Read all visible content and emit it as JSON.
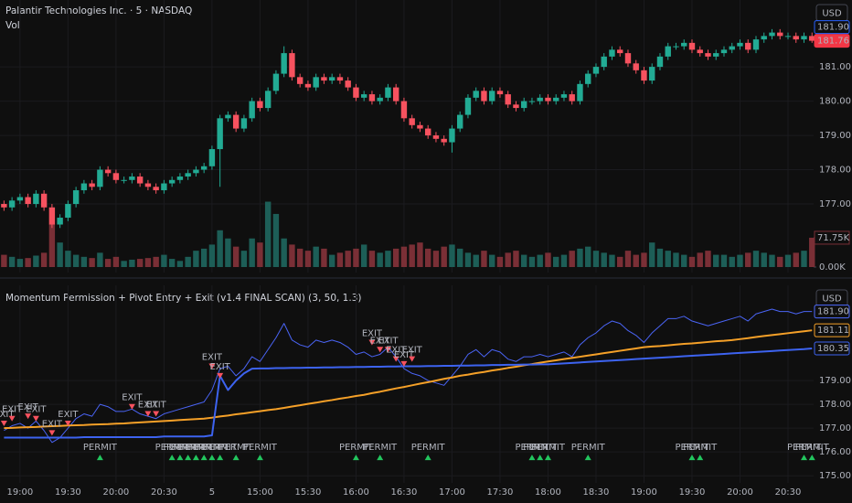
{
  "chart_data": [
    {
      "type": "candlestick",
      "title": "Palantir Technologies Inc. · 5 · NASDAQ",
      "subtitle": "Vol",
      "currency": "USD",
      "up_color": "#22ab94",
      "down_color": "#f7525f",
      "volume_up_color": "#1d5e57",
      "volume_down_color": "#7a2f36",
      "xlim": [
        -0.5,
        101.2
      ],
      "ylim": [
        175,
        182.95
      ],
      "grid": true,
      "yticks": [
        {
          "value": 181,
          "label": "181.00"
        },
        {
          "value": 180,
          "label": "180.00"
        },
        {
          "value": 179,
          "label": "179.00"
        },
        {
          "value": 178,
          "label": "178.00"
        },
        {
          "value": 177,
          "label": "177.00"
        }
      ],
      "price_labels": [
        {
          "value": 181.9,
          "label": "181.90",
          "color": "#2962ff",
          "filled": false
        },
        {
          "value": 181.76,
          "label": "181.76",
          "color": "#f23645",
          "filled": true
        }
      ],
      "vlim": [
        0,
        300
      ],
      "vticks": [
        {
          "value": 0,
          "label": "0.00K"
        },
        {
          "value": 71.75,
          "label": "71.75K"
        }
      ],
      "open": [
        177.0,
        176.9,
        177.1,
        177.2,
        177.0,
        177.3,
        176.9,
        176.4,
        176.6,
        177.0,
        177.4,
        177.6,
        177.5,
        178.0,
        177.9,
        177.7,
        177.7,
        177.8,
        177.6,
        177.5,
        177.4,
        177.6,
        177.7,
        177.8,
        177.9,
        178.0,
        178.1,
        178.6,
        179.5,
        179.6,
        179.2,
        179.5,
        180.0,
        179.8,
        180.3,
        180.8,
        181.4,
        180.7,
        180.5,
        180.4,
        180.7,
        180.6,
        180.7,
        180.6,
        180.4,
        180.1,
        180.2,
        180.0,
        180.1,
        180.4,
        180.0,
        179.5,
        179.3,
        179.2,
        179.0,
        178.9,
        178.8,
        179.2,
        179.6,
        180.1,
        180.3,
        180.0,
        180.3,
        180.2,
        179.9,
        179.8,
        180.0,
        180.0,
        180.1,
        180.0,
        180.1,
        180.2,
        180.0,
        180.5,
        180.8,
        181.0,
        181.3,
        181.5,
        181.4,
        181.1,
        180.9,
        180.6,
        181.0,
        181.3,
        181.6,
        181.6,
        181.7,
        181.5,
        181.4,
        181.3,
        181.4,
        181.5,
        181.6,
        181.7,
        181.5,
        181.8,
        181.9,
        182.0,
        181.9,
        181.9,
        181.8,
        181.9
      ],
      "high": [
        177.1,
        177.2,
        177.3,
        177.3,
        177.4,
        177.4,
        177.0,
        176.7,
        177.1,
        177.5,
        177.7,
        177.7,
        178.1,
        178.1,
        178.0,
        177.8,
        177.9,
        177.9,
        177.7,
        177.6,
        177.7,
        177.8,
        177.9,
        178.0,
        178.1,
        178.2,
        178.7,
        179.6,
        179.7,
        179.7,
        179.6,
        180.1,
        180.1,
        180.4,
        180.9,
        181.6,
        181.5,
        180.8,
        180.6,
        180.8,
        180.8,
        180.8,
        180.8,
        180.7,
        180.5,
        180.3,
        180.3,
        180.2,
        180.5,
        180.5,
        180.1,
        179.6,
        179.4,
        179.3,
        179.1,
        179.0,
        179.3,
        179.7,
        180.2,
        180.4,
        180.4,
        180.4,
        180.4,
        180.3,
        180.0,
        180.1,
        180.1,
        180.2,
        180.2,
        180.2,
        180.3,
        180.3,
        180.6,
        180.9,
        181.1,
        181.4,
        181.6,
        181.6,
        181.5,
        181.2,
        181.0,
        181.1,
        181.4,
        181.7,
        181.7,
        181.8,
        181.8,
        181.6,
        181.5,
        181.5,
        181.6,
        181.7,
        181.8,
        181.8,
        181.9,
        182.0,
        182.1,
        182.1,
        182.0,
        182.0,
        182.0,
        182.0
      ],
      "low": [
        176.8,
        176.8,
        177.0,
        176.9,
        176.9,
        176.8,
        176.3,
        176.3,
        176.5,
        176.9,
        177.3,
        177.4,
        177.4,
        177.8,
        177.6,
        177.6,
        177.6,
        177.5,
        177.4,
        177.3,
        177.3,
        177.5,
        177.6,
        177.7,
        177.8,
        177.9,
        178.0,
        177.5,
        179.4,
        179.1,
        179.1,
        179.4,
        179.7,
        179.7,
        180.2,
        180.7,
        180.6,
        180.4,
        180.3,
        180.3,
        180.5,
        180.5,
        180.5,
        180.3,
        180.0,
        180.0,
        179.9,
        179.9,
        180.0,
        179.9,
        179.4,
        179.2,
        179.1,
        178.9,
        178.8,
        178.7,
        178.5,
        179.1,
        179.5,
        180.0,
        179.9,
        179.9,
        180.1,
        179.8,
        179.7,
        179.7,
        179.9,
        179.9,
        179.9,
        179.9,
        180.0,
        179.9,
        179.9,
        180.4,
        180.7,
        180.9,
        181.2,
        181.3,
        181.0,
        180.8,
        180.5,
        180.5,
        180.9,
        181.2,
        181.5,
        181.5,
        181.4,
        181.3,
        181.2,
        181.2,
        181.3,
        181.4,
        181.5,
        181.4,
        181.4,
        181.7,
        181.8,
        181.8,
        181.8,
        181.7,
        181.7,
        181.7
      ],
      "close": [
        176.9,
        177.1,
        177.2,
        177.0,
        177.3,
        176.9,
        176.4,
        176.6,
        177.0,
        177.4,
        177.6,
        177.5,
        178.0,
        177.9,
        177.7,
        177.7,
        177.8,
        177.6,
        177.5,
        177.4,
        177.6,
        177.7,
        177.8,
        177.9,
        178.0,
        178.1,
        178.6,
        179.5,
        179.6,
        179.2,
        179.5,
        180.0,
        179.8,
        180.3,
        180.8,
        181.4,
        180.7,
        180.5,
        180.4,
        180.7,
        180.6,
        180.7,
        180.6,
        180.4,
        180.1,
        180.2,
        180.0,
        180.1,
        180.4,
        180.0,
        179.5,
        179.3,
        179.2,
        179.0,
        178.9,
        178.8,
        179.2,
        179.6,
        180.1,
        180.3,
        180.0,
        180.3,
        180.2,
        179.9,
        179.8,
        180.0,
        180.0,
        180.1,
        180.0,
        180.1,
        180.2,
        180.0,
        180.5,
        180.8,
        181.0,
        181.3,
        181.5,
        181.4,
        181.1,
        180.9,
        180.6,
        181.0,
        181.3,
        181.6,
        181.6,
        181.7,
        181.5,
        181.4,
        181.3,
        181.4,
        181.5,
        181.6,
        181.7,
        181.5,
        181.8,
        181.9,
        182.0,
        181.9,
        181.9,
        181.8,
        181.9,
        181.76
      ],
      "volume": [
        30,
        25,
        20,
        22,
        28,
        35,
        105,
        60,
        40,
        30,
        25,
        22,
        35,
        20,
        25,
        15,
        18,
        20,
        22,
        25,
        30,
        20,
        15,
        25,
        40,
        45,
        55,
        90,
        70,
        50,
        40,
        70,
        60,
        160,
        130,
        70,
        55,
        45,
        40,
        50,
        45,
        30,
        35,
        40,
        45,
        55,
        40,
        35,
        40,
        45,
        50,
        55,
        60,
        45,
        40,
        50,
        55,
        45,
        35,
        30,
        40,
        30,
        25,
        35,
        40,
        30,
        25,
        30,
        35,
        25,
        30,
        40,
        45,
        50,
        40,
        35,
        30,
        25,
        40,
        30,
        35,
        60,
        45,
        40,
        35,
        30,
        25,
        35,
        40,
        30,
        30,
        25,
        30,
        35,
        40,
        35,
        30,
        25,
        30,
        35,
        40,
        71.75
      ]
    },
    {
      "type": "line",
      "title": "Momentum Permission + Pivot Entry + Exit (v1.4 FINAL SCAN) (3, 50, 1.3)",
      "currency": "USD",
      "xlim": [
        -0.5,
        101.2
      ],
      "ylim": [
        174.7,
        183
      ],
      "grid": true,
      "xticks": [
        {
          "value": 2,
          "label": "19:00"
        },
        {
          "value": 8,
          "label": "19:30"
        },
        {
          "value": 14,
          "label": "20:00"
        },
        {
          "value": 20,
          "label": "20:30"
        },
        {
          "value": 26,
          "label": "5"
        },
        {
          "value": 32,
          "label": "15:00"
        },
        {
          "value": 38,
          "label": "15:30"
        },
        {
          "value": 44,
          "label": "16:00"
        },
        {
          "value": 50,
          "label": "16:30"
        },
        {
          "value": 56,
          "label": "17:00"
        },
        {
          "value": 62,
          "label": "17:30"
        },
        {
          "value": 68,
          "label": "18:00"
        },
        {
          "value": 74,
          "label": "18:30"
        },
        {
          "value": 80,
          "label": "19:00"
        },
        {
          "value": 86,
          "label": "19:30"
        },
        {
          "value": 92,
          "label": "20:00"
        },
        {
          "value": 98,
          "label": "20:30"
        }
      ],
      "yticks": [
        {
          "value": 179,
          "label": "179.00"
        },
        {
          "value": 178,
          "label": "178.00"
        },
        {
          "value": 177,
          "label": "177.00"
        },
        {
          "value": 176,
          "label": "176.00"
        },
        {
          "value": 175,
          "label": "175.00"
        }
      ],
      "price_labels": [
        {
          "value": 181.9,
          "label": "181.90",
          "color": "#4f6bff",
          "filled": false
        },
        {
          "value": 181.11,
          "label": "181.11",
          "color": "#f5a028",
          "filled": false
        },
        {
          "value": 180.35,
          "label": "180.35",
          "color": "#3d63f0",
          "filled": false
        }
      ],
      "series": [
        {
          "color": "#4a64f5",
          "width": 1,
          "values": [
            176.9,
            177.1,
            177.2,
            177.0,
            177.3,
            176.9,
            176.4,
            176.6,
            177.0,
            177.4,
            177.6,
            177.5,
            178.0,
            177.9,
            177.7,
            177.7,
            177.8,
            177.6,
            177.5,
            177.4,
            177.6,
            177.7,
            177.8,
            177.9,
            178.0,
            178.1,
            178.6,
            179.5,
            179.6,
            179.2,
            179.5,
            180.0,
            179.8,
            180.3,
            180.8,
            181.4,
            180.7,
            180.5,
            180.4,
            180.7,
            180.6,
            180.7,
            180.6,
            180.4,
            180.1,
            180.2,
            180.0,
            180.1,
            180.4,
            180.0,
            179.5,
            179.3,
            179.2,
            179.0,
            178.9,
            178.8,
            179.2,
            179.6,
            180.1,
            180.3,
            180.0,
            180.3,
            180.2,
            179.9,
            179.8,
            180.0,
            180.0,
            180.1,
            180.0,
            180.1,
            180.2,
            180.0,
            180.5,
            180.8,
            181.0,
            181.3,
            181.5,
            181.4,
            181.1,
            180.9,
            180.6,
            181.0,
            181.3,
            181.6,
            181.6,
            181.7,
            181.5,
            181.4,
            181.3,
            181.4,
            181.5,
            181.6,
            181.7,
            181.5,
            181.8,
            181.9,
            182.0,
            181.9,
            181.9,
            181.8,
            181.9,
            181.9
          ]
        },
        {
          "color": "#f5a028",
          "width": 2,
          "values": [
            177.0,
            177.01,
            177.03,
            177.04,
            177.05,
            177.07,
            177.08,
            177.09,
            177.11,
            177.12,
            177.13,
            177.15,
            177.16,
            177.17,
            177.19,
            177.2,
            177.22,
            177.24,
            177.26,
            177.28,
            177.3,
            177.32,
            177.34,
            177.36,
            177.38,
            177.4,
            177.44,
            177.49,
            177.53,
            177.58,
            177.62,
            177.67,
            177.71,
            177.76,
            177.8,
            177.85,
            177.91,
            177.96,
            178.02,
            178.07,
            178.13,
            178.18,
            178.24,
            178.29,
            178.35,
            178.4,
            178.47,
            178.53,
            178.6,
            178.67,
            178.73,
            178.8,
            178.87,
            178.93,
            179.0,
            179.07,
            179.13,
            179.2,
            179.25,
            179.31,
            179.36,
            179.42,
            179.47,
            179.53,
            179.58,
            179.64,
            179.69,
            179.75,
            179.8,
            179.85,
            179.9,
            179.95,
            180.0,
            180.05,
            180.1,
            180.15,
            180.2,
            180.25,
            180.3,
            180.35,
            180.4,
            180.43,
            180.45,
            180.48,
            180.51,
            180.54,
            180.56,
            180.59,
            180.62,
            180.65,
            180.67,
            180.7,
            180.74,
            180.78,
            180.83,
            180.87,
            180.91,
            180.95,
            180.99,
            181.03,
            181.07,
            181.11
          ]
        },
        {
          "color": "#3d63f0",
          "width": 2,
          "values": [
            176.6,
            176.6,
            176.6,
            176.6,
            176.6,
            176.6,
            176.6,
            176.6,
            176.6,
            176.6,
            176.62,
            176.62,
            176.62,
            176.62,
            176.62,
            176.62,
            176.62,
            176.62,
            176.62,
            176.62,
            176.65,
            176.65,
            176.65,
            176.65,
            176.65,
            176.65,
            176.7,
            179.2,
            178.6,
            179.0,
            179.3,
            179.5,
            179.51,
            179.51,
            179.52,
            179.52,
            179.53,
            179.53,
            179.54,
            179.54,
            179.55,
            179.55,
            179.56,
            179.56,
            179.57,
            179.57,
            179.58,
            179.58,
            179.59,
            179.59,
            179.6,
            179.6,
            179.6,
            179.61,
            179.61,
            179.62,
            179.62,
            179.63,
            179.63,
            179.64,
            179.64,
            179.65,
            179.65,
            179.66,
            179.66,
            179.67,
            179.67,
            179.68,
            179.68,
            179.7,
            179.72,
            179.74,
            179.76,
            179.78,
            179.8,
            179.82,
            179.84,
            179.86,
            179.88,
            179.9,
            179.92,
            179.94,
            179.96,
            179.98,
            180.0,
            180.02,
            180.04,
            180.06,
            180.08,
            180.1,
            180.12,
            180.14,
            180.16,
            180.18,
            180.2,
            180.22,
            180.24,
            180.26,
            180.28,
            180.3,
            180.32,
            180.35
          ]
        }
      ],
      "exits": {
        "label": "EXIT",
        "color": "#f7525f",
        "text_color": "#5b7fe0",
        "x": [
          0,
          1,
          3,
          4,
          6,
          8,
          16,
          18,
          19,
          26,
          27,
          46,
          47,
          48,
          49,
          50,
          51
        ],
        "y": [
          177.2,
          177.4,
          177.5,
          177.4,
          176.8,
          177.2,
          177.9,
          177.6,
          177.6,
          179.6,
          179.2,
          180.6,
          180.3,
          180.3,
          179.9,
          179.7,
          179.9
        ]
      },
      "permits": {
        "label": "PERMIT",
        "color": "#22c55e",
        "text_color": "#5b7fe0",
        "y": 175.77,
        "x": [
          12,
          21,
          22,
          23,
          24,
          25,
          26,
          27,
          29,
          32,
          44,
          47,
          53,
          66,
          67,
          68,
          73,
          86,
          87,
          100,
          101
        ]
      }
    }
  ]
}
